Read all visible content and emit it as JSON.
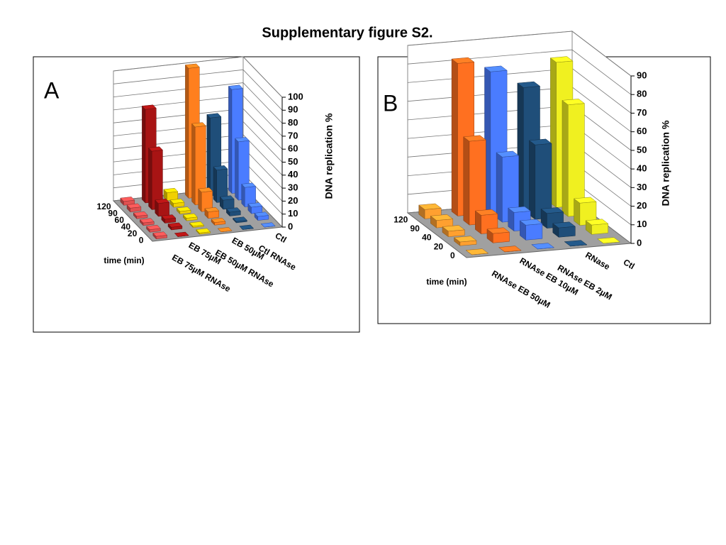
{
  "title": "Supplementary figure S2.",
  "chart_data": [
    {
      "type": "bar3d",
      "label": "A",
      "ylabel": "DNA replication %",
      "time_label": "time (min)",
      "time": [
        0,
        20,
        40,
        60,
        90,
        120
      ],
      "ylim": [
        0,
        100
      ],
      "yticks": [
        0,
        10,
        20,
        30,
        40,
        50,
        60,
        70,
        80,
        90,
        100
      ],
      "series": [
        {
          "name": "EB 75µM RNAse",
          "color": "#e05050",
          "values": [
            2,
            2,
            2,
            2,
            3,
            3
          ]
        },
        {
          "name": "EB 75µM",
          "color": "#a81414",
          "values": [
            0,
            2,
            3,
            10,
            45,
            72
          ]
        },
        {
          "name": "EB 50µM RNAse",
          "color": "#f0d000",
          "values": [
            1,
            1,
            2,
            2,
            3,
            6
          ]
        },
        {
          "name": "EB 50µM",
          "color": "#ff7f1e",
          "values": [
            0,
            2,
            5,
            15,
            60,
            100
          ]
        },
        {
          "name": "Ctl RNAse",
          "color": "#1f4e79",
          "values": [
            0,
            1,
            3,
            7,
            25,
            60
          ]
        },
        {
          "name": "Ctl",
          "color": "#4a7cff",
          "values": [
            0,
            3,
            5,
            15,
            45,
            80
          ]
        }
      ]
    },
    {
      "type": "bar3d",
      "label": "B",
      "ylabel": "DNA replication %",
      "time_label": "time (min)",
      "time": [
        0,
        20,
        40,
        90,
        120
      ],
      "ylim": [
        0,
        90
      ],
      "yticks": [
        0,
        10,
        20,
        30,
        40,
        50,
        60,
        70,
        80,
        90
      ],
      "series": [
        {
          "name": "RNAse EB 50µM",
          "color": "#ffa030",
          "values": [
            0,
            2,
            3,
            4,
            5
          ]
        },
        {
          "name": "RNAse EB 10µM",
          "color": "#ff7020",
          "values": [
            0,
            5,
            10,
            45,
            82
          ]
        },
        {
          "name": "RNAse EB 2µM",
          "color": "#4a7cff",
          "values": [
            0,
            8,
            10,
            35,
            76
          ]
        },
        {
          "name": "RNase",
          "color": "#1f4e79",
          "values": [
            0,
            5,
            8,
            40,
            66
          ]
        },
        {
          "name": "Ctl",
          "color": "#f0f020",
          "values": [
            0,
            5,
            12,
            60,
            78
          ]
        }
      ]
    }
  ]
}
